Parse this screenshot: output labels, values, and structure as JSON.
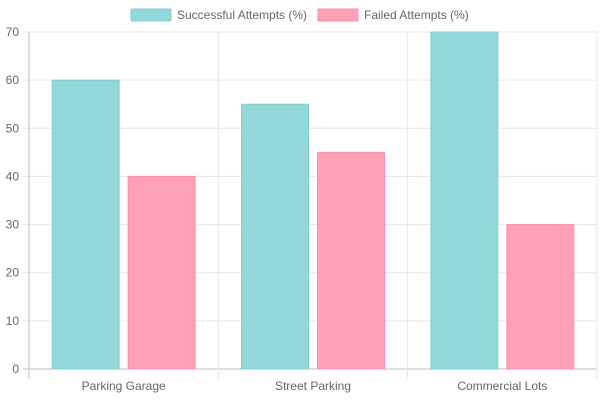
{
  "colors": {
    "series_fill": [
      "#93d8d8",
      "#ffa1b4"
    ],
    "series_border": [
      "#7fd0d0",
      "#ff8fa6"
    ],
    "grid": "#e6e6e6",
    "text": "#666666"
  },
  "chart_data": {
    "type": "bar",
    "categories": [
      "Parking Garage",
      "Street Parking",
      "Commercial Lots"
    ],
    "series": [
      {
        "name": "Successful Attempts (%)",
        "values": [
          60,
          55,
          70
        ]
      },
      {
        "name": "Failed Attempts (%)",
        "values": [
          40,
          45,
          30
        ]
      }
    ],
    "ylim": [
      0,
      70
    ],
    "yticks": [
      0,
      10,
      20,
      30,
      40,
      50,
      60,
      70
    ],
    "grid": true,
    "legend_position": "top-center"
  }
}
